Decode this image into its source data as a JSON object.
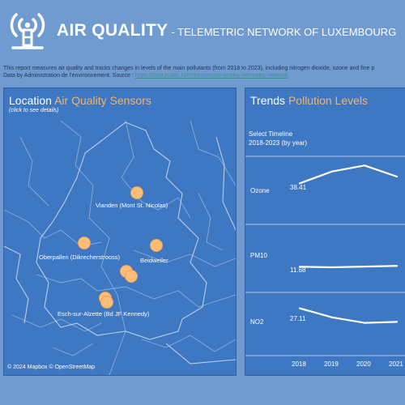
{
  "header": {
    "title": "AIR QUALITY",
    "subtitle": "- TELEMETRIC NETWORK OF LUXEMBOURG",
    "icon": "broadcast-tower-icon",
    "description_line1": "This report measures air quality and tracks changes in levels of the main pollutants (from 2018 to 2023), including nitrogen dioxide, ozone and fine p",
    "description_line2_prefix": "Data by Administration de l'environnement. Source :",
    "description_link": "https://data.public.lu/fr/datasets/air-quality-telemetric-network"
  },
  "map": {
    "title_prefix": "Location",
    "title_accent": "Air Quality Sensors",
    "hint": "(click to see details)",
    "attribution": "© 2024 Mapbox © OpenStreetMap",
    "sensors": [
      {
        "label": "Vianden (Mont St. Nicolas)"
      },
      {
        "label": "Oberpallen (Dikrecherstrooss)"
      },
      {
        "label": "Beidweiler"
      },
      {
        "label": ""
      },
      {
        "label": "Esch-sur-Alzette (Bd JF Kennedy)"
      }
    ]
  },
  "trends": {
    "title_prefix": "Trends",
    "title_accent": "Pollution Levels",
    "select_label": "Select Timeline",
    "select_value": "2018-2023 (by year)",
    "rows": [
      {
        "label": "Ozone",
        "first_value": "38.41"
      },
      {
        "label": "PM10",
        "first_value": "11.68"
      },
      {
        "label": "NO2",
        "first_value": "27.11"
      }
    ],
    "years": [
      "2018",
      "2019",
      "2020",
      "2021"
    ]
  },
  "colors": {
    "background": "#6f9bd1",
    "panel": "#3e77c2",
    "accent": "#f4b36b",
    "sensor": "#ffbe78"
  },
  "chart_data": {
    "type": "line",
    "x": [
      "2018",
      "2019",
      "2020",
      "2021"
    ],
    "series": [
      {
        "name": "Ozone",
        "values": [
          38.41,
          41.2,
          42.6,
          40.0
        ]
      },
      {
        "name": "PM10",
        "values": [
          11.68,
          11.6,
          11.7,
          11.8
        ]
      },
      {
        "name": "NO2",
        "values": [
          27.11,
          24.3,
          22.6,
          22.9
        ]
      }
    ]
  }
}
